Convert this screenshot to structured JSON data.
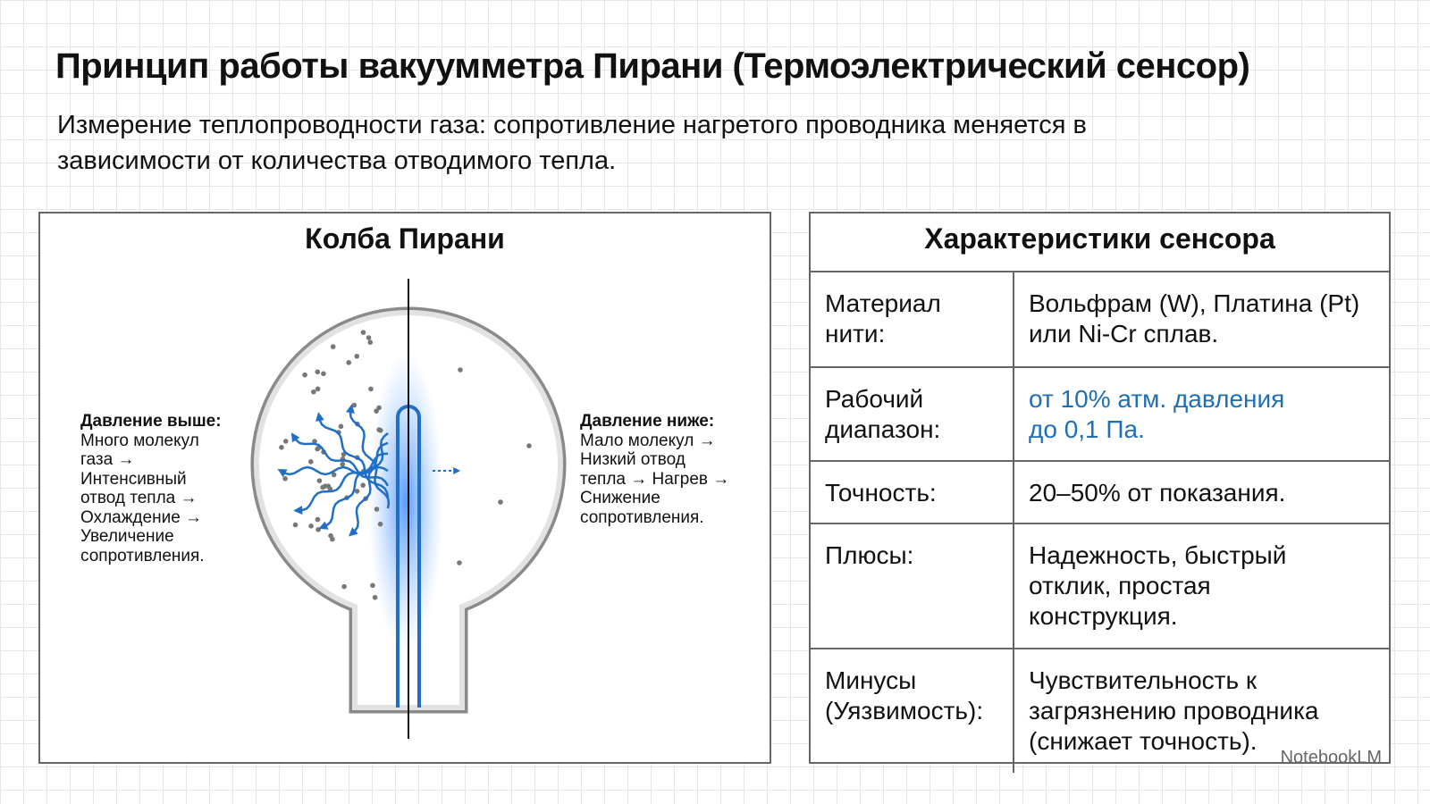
{
  "header": {
    "title": "Принцип работы вакуумметра Пирани (Термоэлектрический сенсор)",
    "subtitle": [
      "Измерение теплопроводности газа: сопротивление нагретого проводника меняется в",
      "зависимости от количества отводимого тепла."
    ]
  },
  "diagram": {
    "title": "Колба Пирани",
    "left_label": {
      "heading": "Давление выше:",
      "lines": [
        "Много молекул",
        "газа →",
        "Интенсивный",
        "отвод тепла →",
        "Охлаждение →",
        "Увеличение",
        "сопротивления."
      ]
    },
    "right_label": {
      "heading": "Давление ниже:",
      "lines": [
        "Мало молекул →",
        "Низкий отвод",
        "тепла → Нагрев →",
        "Снижение",
        "сопротивления."
      ]
    }
  },
  "table": {
    "title": "Характеристики сенсора",
    "rows": [
      [
        [
          "Материал",
          "нити:"
        ],
        [
          "Вольфрам (W), Платина (Pt)",
          "или Ni-Cr сплав."
        ]
      ],
      [
        [
          "Рабочий",
          "диапазон:"
        ],
        [
          "от 10% атм. давления",
          "до 0,1 Па."
        ]
      ],
      [
        [
          "Точность:"
        ],
        [
          "20–50% от показания."
        ]
      ],
      [
        [
          "Плюсы:"
        ],
        [
          "Надежность, быстрый",
          "отклик, простая",
          "конструкция."
        ]
      ],
      [
        [
          "Минусы",
          "(Уязвимость):"
        ],
        [
          "Чувствительность к",
          "загрязнению проводника",
          "(снижает точность)."
        ]
      ]
    ]
  },
  "watermark": "NotebookLM"
}
